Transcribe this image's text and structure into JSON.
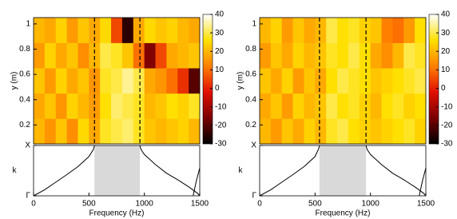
{
  "chart_data": [
    {
      "type": "heatmap",
      "ylabel": "y (m)",
      "xlabel": "Frequency (Hz)",
      "k_label": "k",
      "x_bins": [
        0,
        100,
        200,
        300,
        400,
        500,
        600,
        700,
        800,
        900,
        1000,
        1100,
        1200,
        1300,
        1400,
        1500
      ],
      "y_bins": [
        0.05,
        0.25,
        0.45,
        0.65,
        0.85,
        1.05
      ],
      "z": [
        [
          20,
          15,
          22,
          14,
          25,
          18,
          28,
          30,
          32,
          28,
          22,
          20,
          22,
          24,
          20
        ],
        [
          18,
          22,
          15,
          24,
          20,
          16,
          26,
          32,
          30,
          28,
          20,
          22,
          26,
          24,
          28
        ],
        [
          22,
          16,
          24,
          18,
          22,
          15,
          28,
          30,
          34,
          30,
          18,
          15,
          10,
          2,
          -20
        ],
        [
          16,
          24,
          18,
          22,
          14,
          20,
          30,
          28,
          22,
          10,
          -15,
          5,
          18,
          20,
          22
        ],
        [
          20,
          18,
          24,
          16,
          22,
          18,
          25,
          5,
          -25,
          18,
          25,
          22,
          24,
          20,
          18
        ]
      ],
      "xlim": [
        0,
        1500
      ],
      "xticks": [
        0,
        500,
        1000,
        1500
      ],
      "ylim": [
        0.05,
        1.05
      ],
      "yticks": [
        0.2,
        0.4,
        0.6,
        0.8,
        1
      ],
      "zlim": [
        -30,
        40
      ],
      "zticks": [
        -30,
        -20,
        -10,
        0,
        10,
        20,
        30,
        40
      ],
      "colormap": [
        "#000000",
        "#7a0000",
        "#e01000",
        "#ff8000",
        "#ffe000",
        "#ffffff"
      ],
      "band": [
        550,
        960
      ],
      "band_color": "#d9d9d9",
      "klim": [
        0,
        1
      ],
      "kticks": [
        {
          "value": 1,
          "label": "X"
        },
        {
          "value": 0,
          "label": "Γ"
        }
      ],
      "curves": [
        {
          "x": [
            0,
            100,
            200,
            300,
            400,
            500,
            540,
            550
          ],
          "values": [
            0,
            0.12,
            0.27,
            0.42,
            0.58,
            0.78,
            0.92,
            1
          ]
        },
        {
          "x": [
            960,
            970,
            1000,
            1100,
            1200,
            1300,
            1400,
            1480,
            1500
          ],
          "values": [
            1,
            0.92,
            0.82,
            0.62,
            0.45,
            0.32,
            0.18,
            0.05,
            0
          ]
        },
        {
          "x": [
            1440,
            1470,
            1500
          ],
          "values": [
            0,
            0.3,
            0.55
          ]
        }
      ]
    },
    {
      "type": "heatmap",
      "ylabel": "y (m)",
      "xlabel": "Frequency (Hz)",
      "k_label": "k",
      "x_bins": [
        0,
        100,
        200,
        300,
        400,
        500,
        600,
        700,
        800,
        900,
        1000,
        1100,
        1200,
        1300,
        1400,
        1500
      ],
      "y_bins": [
        0.05,
        0.25,
        0.45,
        0.65,
        0.85,
        1.05
      ],
      "z": [
        [
          20,
          16,
          22,
          18,
          24,
          20,
          28,
          30,
          26,
          24,
          22,
          24,
          26,
          28,
          24
        ],
        [
          18,
          22,
          16,
          24,
          20,
          22,
          30,
          26,
          28,
          24,
          20,
          26,
          28,
          24,
          26
        ],
        [
          22,
          18,
          24,
          16,
          22,
          18,
          26,
          30,
          28,
          26,
          22,
          24,
          26,
          28,
          30
        ],
        [
          16,
          22,
          18,
          24,
          20,
          22,
          28,
          26,
          30,
          26,
          18,
          14,
          20,
          30,
          28
        ],
        [
          20,
          24,
          16,
          22,
          18,
          20,
          30,
          26,
          28,
          24,
          22,
          12,
          10,
          16,
          26
        ]
      ],
      "xlim": [
        0,
        1500
      ],
      "xticks": [
        0,
        500,
        1000,
        1500
      ],
      "ylim": [
        0.05,
        1.05
      ],
      "yticks": [
        0.2,
        0.4,
        0.6,
        0.8,
        1
      ],
      "zlim": [
        -30,
        40
      ],
      "zticks": [
        -30,
        -20,
        -10,
        0,
        10,
        20,
        30,
        40
      ],
      "colormap": [
        "#000000",
        "#7a0000",
        "#e01000",
        "#ff8000",
        "#ffe000",
        "#ffffff"
      ],
      "band": [
        540,
        960
      ],
      "band_color": "#d9d9d9",
      "klim": [
        0,
        1
      ],
      "kticks": [
        {
          "value": 1,
          "label": "X"
        },
        {
          "value": 0,
          "label": "Γ"
        }
      ],
      "curves": [
        {
          "x": [
            0,
            100,
            200,
            300,
            400,
            500,
            530,
            540
          ],
          "values": [
            0,
            0.12,
            0.27,
            0.42,
            0.58,
            0.78,
            0.92,
            1
          ]
        },
        {
          "x": [
            960,
            970,
            1000,
            1100,
            1200,
            1300,
            1400,
            1480,
            1500
          ],
          "values": [
            1,
            0.92,
            0.82,
            0.62,
            0.45,
            0.32,
            0.18,
            0.05,
            0
          ]
        },
        {
          "x": [
            1440,
            1470,
            1500
          ],
          "values": [
            0,
            0.3,
            0.55
          ]
        }
      ]
    }
  ]
}
